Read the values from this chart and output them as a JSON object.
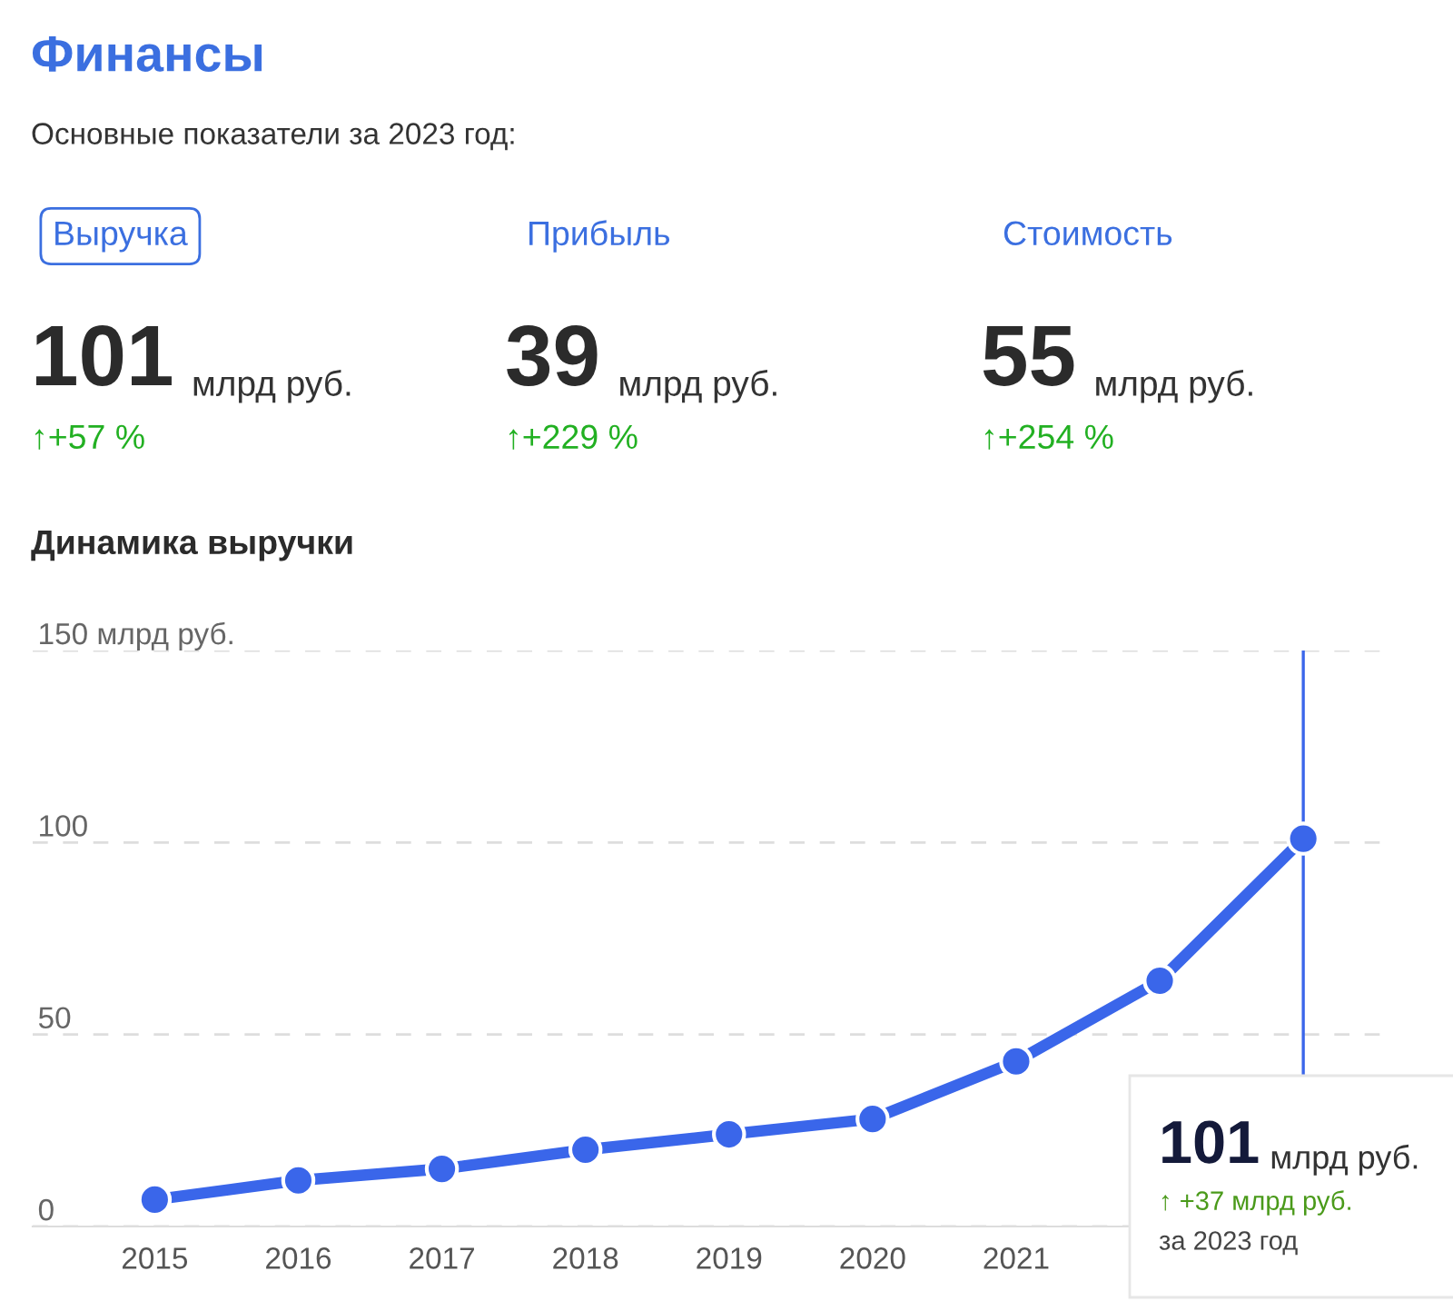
{
  "chart_data": [
    {
      "type": "other",
      "title": "Финансы",
      "subtitle": "Основные показатели за 2023 год:",
      "annotations": [
        "Выручка",
        "101",
        "млрд руб.",
        "↑+57 %",
        "Прибыль",
        "39",
        "млрд руб.",
        "↑+229 %",
        "Стоимость",
        "55",
        "млрд руб.",
        "↑+254 %"
      ]
    },
    {
      "type": "line",
      "title": "Динамика выручки",
      "x": [
        2015,
        2016,
        2017,
        2018,
        2019,
        2020,
        2021,
        2022,
        2023
      ],
      "xlim": [
        2014.15,
        2023.6
      ],
      "xticks": [
        2015,
        2016,
        2017,
        2018,
        2019,
        2020,
        2021
      ],
      "ylim": [
        0,
        150
      ],
      "yticks": [
        0,
        50,
        100,
        {
          "value": 150,
          "label": "150 млрд руб."
        }
      ],
      "series": [
        {
          "color": "#3a66ea",
          "values": [
            7,
            12,
            15,
            20,
            24,
            28,
            43,
            64,
            101
          ]
        }
      ],
      "grid": "y",
      "marker": "circle",
      "line_style": "solid",
      "ref_lines": [
        {
          "axis": "x",
          "value": 2023,
          "color": "#3a66ea"
        }
      ],
      "annotations": [
        "101",
        "млрд руб.",
        "↑ +37 млрд руб.",
        "за 2023 год"
      ]
    }
  ]
}
